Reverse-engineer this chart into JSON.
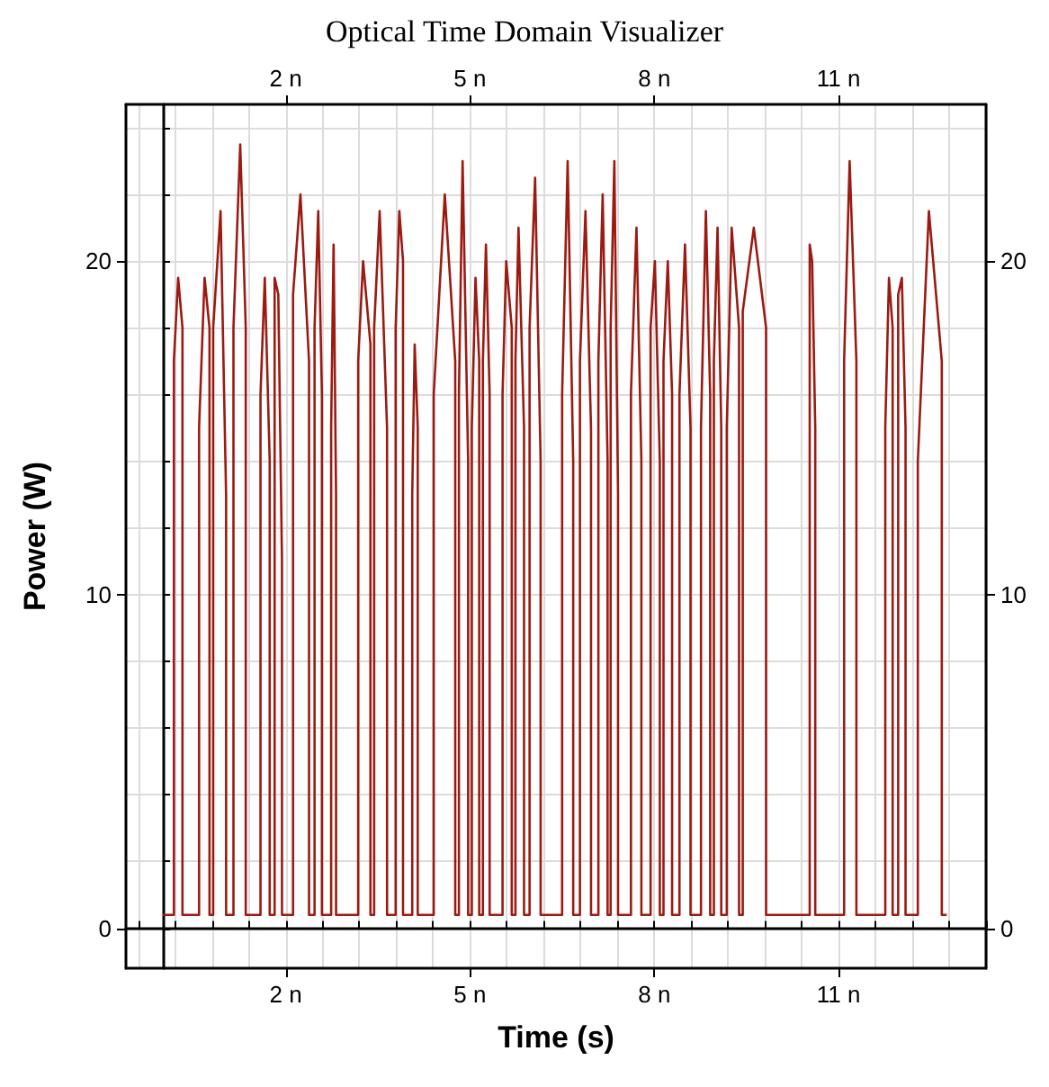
{
  "chart_data": {
    "type": "line",
    "title": "Optical Time Domain Visualizer",
    "xlabel": "Time (s)",
    "ylabel": "Power (W)",
    "xlim": [
      -0.6,
      13.4
    ],
    "xticks": [
      {
        "value": 2,
        "label": "2 n"
      },
      {
        "value": 5,
        "label": "5 n"
      },
      {
        "value": 8,
        "label": "8 n"
      },
      {
        "value": 11,
        "label": "11 n"
      }
    ],
    "x2lim": [
      -0.6,
      13.4
    ],
    "x2ticks": [
      {
        "value": 2,
        "label": "2 n"
      },
      {
        "value": 5,
        "label": "5 n"
      },
      {
        "value": 8,
        "label": "8 n"
      },
      {
        "value": 11,
        "label": "11 n"
      }
    ],
    "ylim": [
      -1.2,
      24.7
    ],
    "yticks": [
      0,
      10,
      20
    ],
    "y2lim": [
      -1.2,
      24.7
    ],
    "y2ticks": [
      0,
      10,
      20
    ],
    "grid": true,
    "marker": "none",
    "line_style": "solid",
    "series": [
      {
        "color": "#9b1b12",
        "x": [
          0,
          0.18,
          0.18,
          0.25,
          0.32,
          0.32,
          0.59,
          0.59,
          0.68,
          0.76,
          0.76,
          0.82,
          0.82,
          0.94,
          1.03,
          1.03,
          1.15,
          1.15,
          1.26,
          1.35,
          1.35,
          1.59,
          1.59,
          1.66,
          1.74,
          1.74,
          1.82,
          1.82,
          1.88,
          1.94,
          1.94,
          2.12,
          2.12,
          2.24,
          2.38,
          2.38,
          2.47,
          2.47,
          2.53,
          2.59,
          2.59,
          2.74,
          2.74,
          2.78,
          2.82,
          2.82,
          3.18,
          3.18,
          3.26,
          3.38,
          3.38,
          3.44,
          3.44,
          3.53,
          3.65,
          3.65,
          3.79,
          3.79,
          3.85,
          3.91,
          3.91,
          4.06,
          4.06,
          4.1,
          4.15,
          4.15,
          4.41,
          4.41,
          4.59,
          4.76,
          4.76,
          4.82,
          4.82,
          4.88,
          4.97,
          4.97,
          5.03,
          5.03,
          5.09,
          5.15,
          5.15,
          5.21,
          5.21,
          5.26,
          5.32,
          5.32,
          5.53,
          5.53,
          5.59,
          5.68,
          5.68,
          5.74,
          5.74,
          5.79,
          5.88,
          5.88,
          5.97,
          5.97,
          6.06,
          6.15,
          6.15,
          6.5,
          6.5,
          6.59,
          6.68,
          6.68,
          6.79,
          6.79,
          6.88,
          6.97,
          6.97,
          7.09,
          7.09,
          7.16,
          7.24,
          7.24,
          7.29,
          7.29,
          7.35,
          7.41,
          7.41,
          7.62,
          7.62,
          7.71,
          7.79,
          7.79,
          7.94,
          7.94,
          8.01,
          8.09,
          8.09,
          8.15,
          8.15,
          8.22,
          8.29,
          8.29,
          8.41,
          8.41,
          8.5,
          8.59,
          8.59,
          8.76,
          8.76,
          8.84,
          8.91,
          8.91,
          8.97,
          8.97,
          9.03,
          9.09,
          9.09,
          9.18,
          9.18,
          9.26,
          9.38,
          9.38,
          9.44,
          9.44,
          9.62,
          9.82,
          9.82,
          10.53,
          10.53,
          10.57,
          10.62,
          10.62,
          11.09,
          11.09,
          11.18,
          11.29,
          11.29,
          11.76,
          11.76,
          11.82,
          11.88,
          11.88,
          11.97,
          11.97,
          12.03,
          12.09,
          12.09,
          12.29,
          12.29,
          12.47,
          12.68,
          12.68,
          12.76
        ],
        "values": [
          0.4,
          0.4,
          17,
          19.5,
          18,
          0.4,
          0.4,
          15,
          19.5,
          18,
          0.4,
          0.4,
          18,
          21.5,
          13,
          0.4,
          0.4,
          18,
          23.5,
          18,
          0.4,
          0.4,
          16,
          19.5,
          14,
          0.4,
          0.4,
          19.5,
          19,
          11,
          0.4,
          0.4,
          19,
          22,
          17,
          0.4,
          0.4,
          18,
          21.5,
          16,
          0.4,
          0.4,
          15,
          20.5,
          13,
          0.4,
          0.4,
          17,
          20,
          17.5,
          0.4,
          0.4,
          18,
          21.5,
          15,
          0.4,
          0.4,
          18,
          21.5,
          20,
          0.4,
          0.4,
          13,
          17.5,
          15,
          0.4,
          0.4,
          16,
          22,
          17,
          0.4,
          0.4,
          16,
          23,
          14,
          0.4,
          0.4,
          15,
          19.5,
          17,
          0.4,
          0.4,
          17,
          20.5,
          16,
          0.4,
          0.4,
          16,
          20,
          18,
          0.4,
          0.4,
          17,
          21,
          15,
          0.4,
          0.4,
          18,
          22.5,
          14,
          0.4,
          0.4,
          16,
          23,
          14,
          0.4,
          0.4,
          17,
          21.5,
          15,
          0.4,
          0.4,
          17,
          22,
          14,
          0.4,
          0.4,
          18,
          23,
          13,
          0.4,
          0.4,
          16,
          21,
          14,
          0.4,
          0.4,
          18,
          20,
          14,
          0.4,
          0.4,
          17,
          20,
          16,
          0.4,
          0.4,
          16,
          20.5,
          15,
          0.4,
          0.4,
          15,
          21.5,
          16,
          0.4,
          0.4,
          17,
          21,
          15,
          0.4,
          0.4,
          15,
          21,
          18,
          0.4,
          0.4,
          18.5,
          21,
          18,
          0.4,
          0.4,
          20.5,
          20,
          15,
          0.4,
          0.4,
          17,
          23,
          17,
          0.4,
          0.4,
          15,
          19.5,
          18,
          0.4,
          0.4,
          19,
          19.5,
          15,
          0.4,
          0.4,
          14,
          21.5,
          17,
          0.4,
          0.4
        ]
      }
    ]
  }
}
